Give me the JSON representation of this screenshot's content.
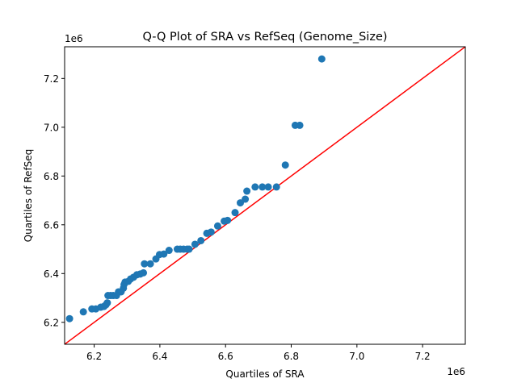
{
  "chart_data": {
    "type": "scatter",
    "title": "Q-Q Plot of SRA vs RefSeq (Genome_Size)",
    "xlabel": "Quartiles of SRA",
    "ylabel": "Quartiles of RefSeq",
    "x_offset_label": "1e6",
    "y_offset_label": "1e6",
    "xlim": [
      6.11,
      7.33
    ],
    "ylim": [
      6.11,
      7.33
    ],
    "xticks": [
      6.2,
      6.4,
      6.6,
      6.8,
      7.0,
      7.2
    ],
    "yticks": [
      6.2,
      6.4,
      6.6,
      6.8,
      7.0,
      7.2
    ],
    "xtick_labels": [
      "6.2",
      "6.4",
      "6.6",
      "6.8",
      "7.0",
      "7.2"
    ],
    "ytick_labels": [
      "6.2",
      "6.4",
      "6.6",
      "6.8",
      "7.0",
      "7.2"
    ],
    "grid": false,
    "point_color": "#1f77b4",
    "line_color": "#ff0000",
    "reference_line": "y = x",
    "points": [
      [
        6.125,
        6.215
      ],
      [
        6.167,
        6.243
      ],
      [
        6.193,
        6.255
      ],
      [
        6.205,
        6.255
      ],
      [
        6.22,
        6.262
      ],
      [
        6.23,
        6.265
      ],
      [
        6.236,
        6.272
      ],
      [
        6.24,
        6.28
      ],
      [
        6.242,
        6.31
      ],
      [
        6.25,
        6.31
      ],
      [
        6.258,
        6.31
      ],
      [
        6.268,
        6.31
      ],
      [
        6.274,
        6.325
      ],
      [
        6.282,
        6.325
      ],
      [
        6.289,
        6.34
      ],
      [
        6.291,
        6.355
      ],
      [
        6.294,
        6.365
      ],
      [
        6.304,
        6.368
      ],
      [
        6.311,
        6.378
      ],
      [
        6.32,
        6.385
      ],
      [
        6.33,
        6.395
      ],
      [
        6.34,
        6.398
      ],
      [
        6.35,
        6.403
      ],
      [
        6.353,
        6.44
      ],
      [
        6.371,
        6.44
      ],
      [
        6.388,
        6.46
      ],
      [
        6.399,
        6.478
      ],
      [
        6.412,
        6.48
      ],
      [
        6.428,
        6.495
      ],
      [
        6.453,
        6.5
      ],
      [
        6.462,
        6.5
      ],
      [
        6.472,
        6.5
      ],
      [
        6.483,
        6.5
      ],
      [
        6.489,
        6.5
      ],
      [
        6.507,
        6.52
      ],
      [
        6.525,
        6.535
      ],
      [
        6.543,
        6.565
      ],
      [
        6.556,
        6.57
      ],
      [
        6.576,
        6.595
      ],
      [
        6.596,
        6.615
      ],
      [
        6.606,
        6.618
      ],
      [
        6.629,
        6.65
      ],
      [
        6.645,
        6.69
      ],
      [
        6.66,
        6.705
      ],
      [
        6.665,
        6.738
      ],
      [
        6.69,
        6.755
      ],
      [
        6.712,
        6.755
      ],
      [
        6.73,
        6.755
      ],
      [
        6.755,
        6.755
      ],
      [
        6.782,
        6.845
      ],
      [
        6.812,
        7.008
      ],
      [
        6.826,
        7.008
      ],
      [
        6.893,
        7.28
      ]
    ]
  }
}
